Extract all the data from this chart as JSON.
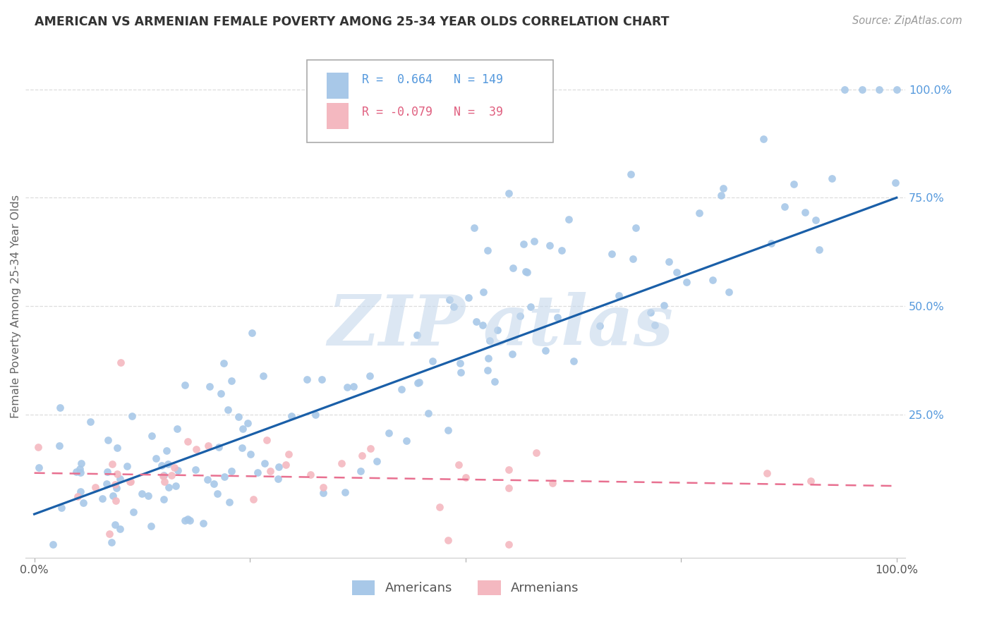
{
  "title": "AMERICAN VS ARMENIAN FEMALE POVERTY AMONG 25-34 YEAR OLDS CORRELATION CHART",
  "source": "Source: ZipAtlas.com",
  "ylabel": "Female Poverty Among 25-34 Year Olds",
  "xlim": [
    -0.01,
    1.01
  ],
  "ylim": [
    -0.08,
    1.08
  ],
  "american_color": "#a8c8e8",
  "armenian_color": "#f4b8c0",
  "american_line_color": "#1a5fa8",
  "armenian_line_color": "#e87090",
  "legend_R_american": "0.664",
  "legend_N_american": "149",
  "legend_R_armenian": "-0.079",
  "legend_N_armenian": "39",
  "background_color": "#ffffff",
  "grid_color": "#dddddd",
  "american_intercept": 0.02,
  "american_slope": 0.73,
  "armenian_intercept": 0.115,
  "armenian_slope": -0.03,
  "ytick_color": "#5599dd",
  "title_color": "#333333",
  "source_color": "#999999"
}
